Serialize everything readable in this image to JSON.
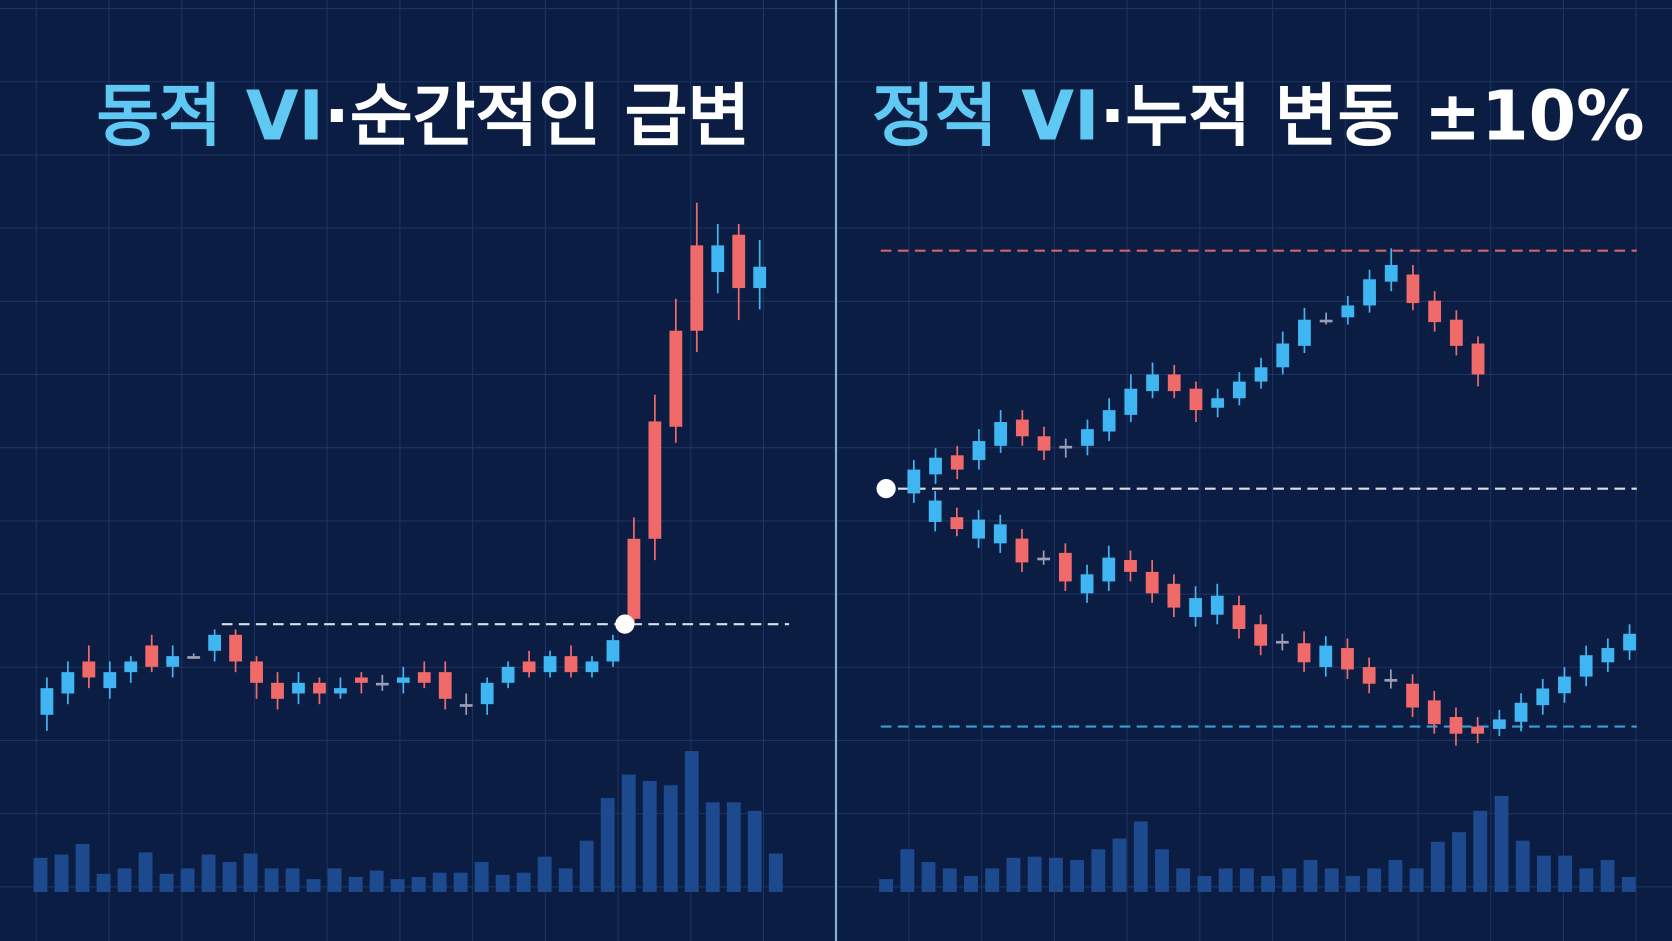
{
  "chart_data": [
    {
      "type": "candlestick",
      "title": "동적 VI",
      "subtitle": "·순간적인 급변",
      "ylim": [
        0,
        104
      ],
      "vlim": [
        0,
        140
      ],
      "colors": {
        "up": "#f06a6a",
        "down": "#3fb6f2",
        "flat": "#9c9fb4",
        "volume": "#1d4a8e",
        "highlight": "#5fc9f3"
      },
      "series": [
        {
          "ohlc": [
            [
              11,
              13,
              3,
              6
            ],
            [
              14,
              16,
              8,
              10
            ],
            [
              13,
              19,
              11,
              16
            ],
            [
              14,
              16,
              9,
              11
            ],
            [
              16,
              17,
              12,
              14
            ],
            [
              15,
              21,
              14,
              19
            ],
            [
              17,
              19,
              13,
              15
            ],
            [
              17,
              17.5,
              16.5,
              17
            ],
            [
              21,
              22,
              16,
              18
            ],
            [
              16,
              22,
              14,
              21
            ],
            [
              12,
              17,
              9,
              16
            ],
            [
              9,
              14,
              7,
              12
            ],
            [
              12,
              14,
              8,
              10
            ],
            [
              10,
              13,
              8,
              12
            ],
            [
              11,
              13,
              9,
              10
            ],
            [
              12,
              14,
              10,
              13
            ],
            [
              12,
              13.5,
              10.5,
              12
            ],
            [
              13,
              15,
              10,
              12
            ],
            [
              12,
              16,
              11,
              14
            ],
            [
              9,
              16,
              7,
              14
            ],
            [
              8,
              10,
              6,
              8
            ],
            [
              12,
              13,
              6,
              8
            ],
            [
              15,
              16,
              11,
              12
            ],
            [
              14,
              18,
              13,
              16
            ],
            [
              17,
              18,
              13,
              14
            ],
            [
              14,
              19,
              13,
              17
            ],
            [
              16,
              17,
              13,
              14
            ],
            [
              20,
              21,
              15,
              16
            ],
            [
              24,
              43,
              23,
              39
            ],
            [
              39,
              66,
              35,
              61
            ],
            [
              60,
              84,
              57,
              78
            ],
            [
              78,
              102,
              74,
              94
            ],
            [
              94,
              98,
              85,
              89
            ],
            [
              86,
              98,
              80,
              96
            ],
            [
              90,
              95,
              82,
              86
            ]
          ]
        }
      ],
      "volume": [
        32,
        35,
        45,
        17,
        22,
        37,
        17,
        22,
        35,
        28,
        36,
        22,
        22,
        12,
        22,
        14,
        20,
        12,
        14,
        18,
        18,
        28,
        16,
        18,
        33,
        22,
        48,
        88,
        110,
        104,
        100,
        132,
        84,
        84,
        76,
        36
      ],
      "reference_lines": [
        {
          "value": 23,
          "color": "#ffffff"
        }
      ]
    },
    {
      "type": "candlestick",
      "title": "정적 VI",
      "subtitle": "·누적 변동 ±10%",
      "ylim": [
        -12,
        12
      ],
      "vlim": [
        0,
        140
      ],
      "colors": {
        "up": "#f06a6a",
        "down": "#3fb6f2",
        "flat": "#9c9fb4",
        "volume": "#1d4a8e",
        "highlight": "#5fc9f3"
      },
      "series": [
        {
          "ohlc": [
            [
              0.8,
              1.2,
              -0.6,
              -0.2
            ],
            [
              1.3,
              1.7,
              0.2,
              0.6
            ],
            [
              0.8,
              1.8,
              0.4,
              1.4
            ],
            [
              2.0,
              2.5,
              0.8,
              1.2
            ],
            [
              2.8,
              3.3,
              1.5,
              1.8
            ],
            [
              2.2,
              3.3,
              1.8,
              2.9
            ],
            [
              1.6,
              2.6,
              1.2,
              2.2
            ],
            [
              1.8,
              2.1,
              1.3,
              1.8
            ],
            [
              2.5,
              2.9,
              1.4,
              1.8
            ],
            [
              3.3,
              3.8,
              2.0,
              2.4
            ],
            [
              4.2,
              4.8,
              2.8,
              3.1
            ],
            [
              4.8,
              5.3,
              3.8,
              4.1
            ],
            [
              4.1,
              5.2,
              3.8,
              4.8
            ],
            [
              3.3,
              4.5,
              2.8,
              4.2
            ],
            [
              3.8,
              4.2,
              3.0,
              3.4
            ],
            [
              4.5,
              4.9,
              3.5,
              3.8
            ],
            [
              5.1,
              5.5,
              4.2,
              4.5
            ],
            [
              6.1,
              6.6,
              4.8,
              5.1
            ],
            [
              7.1,
              7.6,
              5.7,
              6.0
            ],
            [
              7.1,
              7.4,
              6.9,
              7.1
            ],
            [
              7.7,
              8.1,
              6.9,
              7.2
            ],
            [
              8.8,
              9.2,
              7.4,
              7.7
            ],
            [
              9.4,
              10.1,
              8.3,
              8.7
            ],
            [
              7.8,
              9.4,
              7.5,
              9.0
            ],
            [
              7.0,
              8.3,
              6.6,
              7.9
            ],
            [
              6.0,
              7.5,
              5.6,
              7.1
            ],
            [
              4.8,
              6.4,
              4.3,
              6.1
            ]
          ]
        },
        {
          "ohlc": [
            [
              -0.5,
              -0.1,
              -1.8,
              -1.4
            ],
            [
              -1.7,
              -0.8,
              -2.0,
              -1.2
            ],
            [
              -1.3,
              -0.9,
              -2.5,
              -2.1
            ],
            [
              -1.5,
              -1.1,
              -2.7,
              -2.3
            ],
            [
              -3.1,
              -1.7,
              -3.5,
              -2.1
            ],
            [
              -2.9,
              -2.6,
              -3.2,
              -2.9
            ],
            [
              -3.9,
              -2.3,
              -4.3,
              -2.7
            ],
            [
              -3.6,
              -3.2,
              -4.8,
              -4.4
            ],
            [
              -2.9,
              -2.4,
              -4.3,
              -3.9
            ],
            [
              -3.5,
              -2.6,
              -3.9,
              -3.0
            ],
            [
              -4.4,
              -3.0,
              -4.8,
              -3.5
            ],
            [
              -5.0,
              -3.6,
              -5.4,
              -4.0
            ],
            [
              -4.6,
              -4.1,
              -5.8,
              -5.4
            ],
            [
              -4.5,
              -4.0,
              -5.7,
              -5.3
            ],
            [
              -5.9,
              -4.5,
              -6.3,
              -4.9
            ],
            [
              -6.6,
              -5.3,
              -7.0,
              -5.7
            ],
            [
              -6.4,
              -6.1,
              -6.8,
              -6.4
            ],
            [
              -7.3,
              -6.0,
              -7.7,
              -6.5
            ],
            [
              -6.6,
              -6.2,
              -7.9,
              -7.5
            ],
            [
              -7.6,
              -6.3,
              -8.0,
              -6.7
            ],
            [
              -8.2,
              -7.1,
              -8.6,
              -7.5
            ],
            [
              -8.0,
              -7.6,
              -8.4,
              -8.0
            ],
            [
              -9.2,
              -7.8,
              -9.6,
              -8.2
            ],
            [
              -9.9,
              -8.5,
              -10.3,
              -8.9
            ],
            [
              -10.3,
              -9.2,
              -10.8,
              -9.6
            ],
            [
              -10.3,
              -9.6,
              -10.7,
              -10.0
            ],
            [
              -9.7,
              -9.3,
              -10.4,
              -10.1
            ],
            [
              -9.0,
              -8.6,
              -10.2,
              -9.8
            ],
            [
              -8.4,
              -8.0,
              -9.5,
              -9.1
            ],
            [
              -7.9,
              -7.5,
              -9.0,
              -8.6
            ],
            [
              -7.0,
              -6.6,
              -8.3,
              -7.9
            ],
            [
              -6.7,
              -6.3,
              -7.7,
              -7.3
            ],
            [
              -6.1,
              -5.7,
              -7.2,
              -6.8
            ]
          ]
        }
      ],
      "volume": [
        12,
        40,
        28,
        22,
        15,
        22,
        32,
        33,
        32,
        30,
        40,
        50,
        66,
        40,
        22,
        15,
        22,
        22,
        15,
        22,
        30,
        22,
        15,
        22,
        30,
        22,
        47,
        56,
        76,
        90,
        48,
        34,
        34,
        22,
        30,
        14
      ],
      "reference_lines": [
        {
          "value": 10,
          "color": "#f07070"
        },
        {
          "value": 0,
          "color": "#ffffff"
        },
        {
          "value": -10,
          "color": "#3fb6f2"
        }
      ]
    }
  ]
}
